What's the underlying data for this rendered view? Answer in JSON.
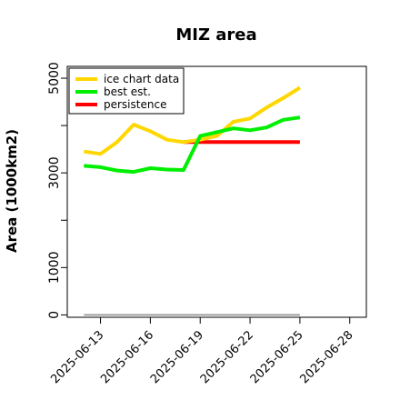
{
  "chart_data": {
    "type": "line",
    "title": "MIZ area",
    "xlabel": "",
    "ylabel": "Area (1000km2)",
    "x_ticks": [
      "2025-06-13",
      "2025-06-16",
      "2025-06-19",
      "2025-06-22",
      "2025-06-25",
      "2025-06-28"
    ],
    "y_ticks": [
      0,
      1000,
      3000,
      5000
    ],
    "x_range_days": [
      11,
      29
    ],
    "ylim": [
      -50,
      5250
    ],
    "grid": false,
    "legend_position": "top-left",
    "series": [
      {
        "name": "ice chart data",
        "color": "#ffd700",
        "x": [
          "2025-06-12",
          "2025-06-13",
          "2025-06-14",
          "2025-06-15",
          "2025-06-16",
          "2025-06-17",
          "2025-06-18",
          "2025-06-19",
          "2025-06-20",
          "2025-06-21",
          "2025-06-22",
          "2025-06-23",
          "2025-06-24",
          "2025-06-25"
        ],
        "values": [
          3450,
          3400,
          3650,
          4020,
          3880,
          3700,
          3650,
          3700,
          3780,
          4080,
          4150,
          4380,
          4580,
          4800
        ]
      },
      {
        "name": "best est.",
        "color": "#00ee00",
        "x": [
          "2025-06-12",
          "2025-06-13",
          "2025-06-14",
          "2025-06-15",
          "2025-06-16",
          "2025-06-17",
          "2025-06-18",
          "2025-06-19",
          "2025-06-20",
          "2025-06-21",
          "2025-06-22",
          "2025-06-23",
          "2025-06-24",
          "2025-06-25"
        ],
        "values": [
          3150,
          3120,
          3050,
          3020,
          3100,
          3070,
          3060,
          3780,
          3860,
          3940,
          3900,
          3960,
          4120,
          4170
        ]
      },
      {
        "name": "persistence",
        "color": "#ff0000",
        "x": [
          "2025-06-18",
          "2025-06-25"
        ],
        "values": [
          3650,
          3650
        ]
      },
      {
        "name": "",
        "color": "#888888",
        "x": [
          "2025-06-12",
          "2025-06-25"
        ],
        "values": [
          0,
          0
        ]
      }
    ]
  }
}
